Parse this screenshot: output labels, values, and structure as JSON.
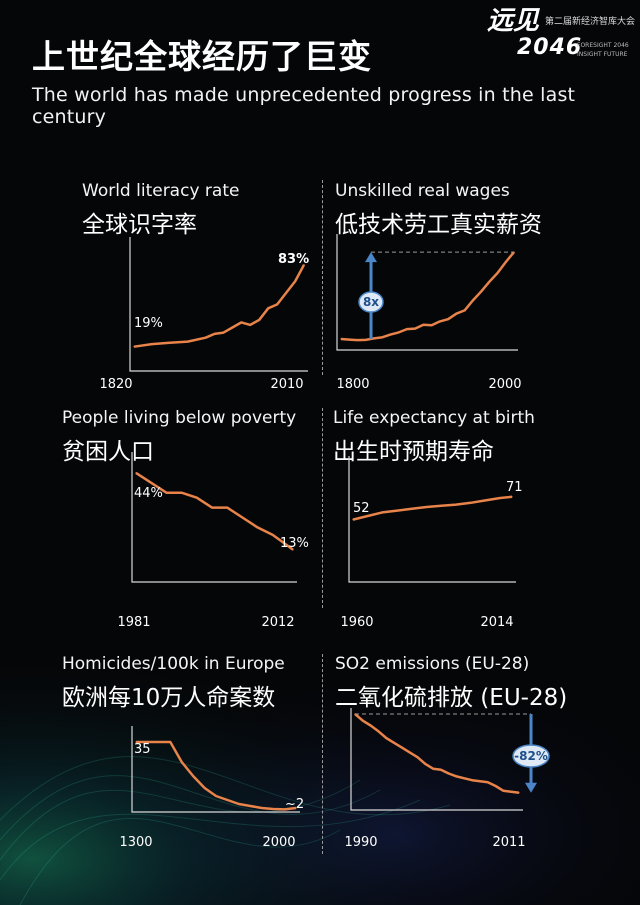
{
  "header": {
    "title_cn": "上世纪全球经历了巨变",
    "title_en": "The world has made unprecedented progress in the last century"
  },
  "logo": {
    "big": "远见",
    "num": "2046",
    "cn": "第二届新经济智库大会",
    "en1": "FORESIGHT 2046",
    "en2": "INSIGHT FUTURE"
  },
  "colors": {
    "line": "#e8834a",
    "arrow": "#4a86c8",
    "background": "#050608"
  },
  "chart_data": [
    {
      "type": "line",
      "title": "World literacy rate",
      "title_cn": "全球识字率",
      "x": [
        1820,
        1840,
        1860,
        1880,
        1900,
        1910,
        1920,
        1930,
        1940,
        1950,
        1960,
        1970,
        1980,
        1990,
        2000,
        2010
      ],
      "y": [
        19,
        21,
        22,
        23,
        26,
        29,
        30,
        34,
        38,
        36,
        40,
        49,
        52,
        61,
        70,
        83
      ],
      "tick_labels": [
        "1820",
        "2010"
      ],
      "labels": {
        "start": "19%",
        "end": "83%"
      }
    },
    {
      "type": "line",
      "title": "Unskilled real wages",
      "title_cn": "低技术劳工真实薪资",
      "x": [
        1800,
        1810,
        1820,
        1830,
        1840,
        1850,
        1860,
        1870,
        1880,
        1890,
        1900,
        1910,
        1920,
        1930,
        1940,
        1950,
        1960,
        1970,
        1980,
        1990,
        2000,
        2010
      ],
      "y": [
        1.0,
        0.95,
        0.9,
        0.92,
        1.05,
        1.15,
        1.4,
        1.6,
        1.9,
        1.95,
        2.3,
        2.25,
        2.6,
        2.8,
        3.3,
        3.6,
        4.5,
        5.3,
        6.2,
        7.0,
        8.0,
        8.9
      ],
      "tick_labels": [
        "1800",
        "2000"
      ],
      "annotation": "8x"
    },
    {
      "type": "line",
      "title": "People living below poverty",
      "title_cn": "贫困人口",
      "x": [
        1981,
        1984,
        1987,
        1990,
        1993,
        1996,
        1999,
        2002,
        2005,
        2008,
        2010,
        2012
      ],
      "y": [
        44,
        40,
        36,
        36,
        34,
        30,
        30,
        26,
        22,
        19,
        16,
        13
      ],
      "tick_labels": [
        "1981",
        "2012"
      ],
      "labels": {
        "start": "44%",
        "end": "13%"
      }
    },
    {
      "type": "line",
      "title": "Life expectancy at birth",
      "title_cn": "出生时预期寿命",
      "x": [
        1960,
        1965,
        1970,
        1975,
        1980,
        1985,
        1990,
        1995,
        2000,
        2005,
        2010,
        2014
      ],
      "y": [
        52,
        55,
        58,
        59.5,
        61,
        62.5,
        63.5,
        64.5,
        66,
        68,
        70,
        71
      ],
      "tick_labels": [
        "1960",
        "2014"
      ],
      "labels": {
        "start": "52",
        "end": "71"
      }
    },
    {
      "type": "line",
      "title": "Homicides/100k in Europe",
      "title_cn": "欧洲每10万人命案数",
      "x": [
        1300,
        1400,
        1450,
        1500,
        1550,
        1600,
        1650,
        1700,
        1750,
        1800,
        1850,
        1900,
        1950,
        2000
      ],
      "y": [
        35,
        35,
        35,
        25,
        18,
        12,
        8,
        6,
        4,
        3,
        2,
        1.5,
        1.3,
        2
      ],
      "tick_labels": [
        "1300",
        "2000"
      ],
      "labels": {
        "start": "35",
        "end": "~2"
      }
    },
    {
      "type": "line",
      "title": "SO2 emissions (EU-28)",
      "title_cn": "二氧化硫排放 (EU-28)",
      "x": [
        1990,
        1991,
        1992,
        1993,
        1994,
        1995,
        1996,
        1997,
        1998,
        1999,
        2000,
        2001,
        2002,
        2003,
        2004,
        2005,
        2006,
        2007,
        2008,
        2009,
        2010,
        2011
      ],
      "y": [
        100,
        93,
        88,
        82,
        75,
        70,
        65,
        60,
        55,
        48,
        43,
        42,
        38,
        35,
        33,
        31,
        30,
        29,
        25,
        20,
        19,
        18
      ],
      "tick_labels": [
        "1990",
        "2011"
      ],
      "annotation": "-82%"
    }
  ]
}
